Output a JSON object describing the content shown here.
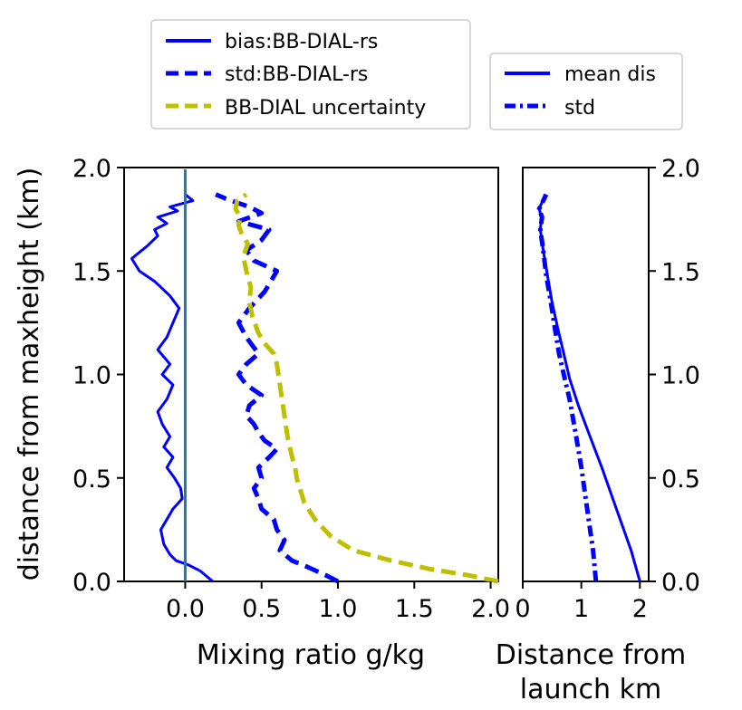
{
  "chart_data": [
    {
      "type": "line",
      "panel": "left",
      "xlabel": "Mixing ratio g/kg",
      "ylabel": "distance from maxheight (km)",
      "xlim": [
        -0.4,
        2.05
      ],
      "ylim": [
        0,
        2.0
      ],
      "xticks": [
        0.0,
        0.5,
        1.0,
        1.5,
        2.0
      ],
      "xtick_labels": [
        "0.0",
        "0.5",
        "1.0",
        "1.5",
        "2.0"
      ],
      "yticks": [
        0.0,
        0.5,
        1.0,
        1.5,
        2.0
      ],
      "ytick_labels": [
        "0.0",
        "0.5",
        "1.0",
        "1.5",
        "2.0"
      ],
      "zero_line": 0.0,
      "legend": {
        "placement": "above",
        "entries": [
          "bias:BB-DIAL-rs",
          "std:BB-DIAL-rs",
          "BB-DIAL uncertainty"
        ]
      },
      "series": [
        {
          "name": "bias:BB-DIAL-rs",
          "style": "solid",
          "color": "#0000ff",
          "x": [
            0.18,
            0.1,
            0.02,
            -0.06,
            -0.1,
            -0.14,
            -0.16,
            -0.12,
            -0.08,
            -0.02,
            -0.03,
            -0.07,
            -0.12,
            -0.08,
            -0.14,
            -0.1,
            -0.15,
            -0.18,
            -0.12,
            -0.08,
            -0.15,
            -0.1,
            -0.18,
            -0.12,
            -0.08,
            -0.04,
            -0.1,
            -0.2,
            -0.3,
            -0.35,
            -0.25,
            -0.18,
            -0.2,
            -0.12,
            -0.18,
            -0.05,
            -0.1,
            0.05,
            0.0
          ],
          "y": [
            0.0,
            0.05,
            0.08,
            0.1,
            0.13,
            0.18,
            0.25,
            0.3,
            0.35,
            0.4,
            0.45,
            0.5,
            0.55,
            0.6,
            0.65,
            0.7,
            0.76,
            0.82,
            0.88,
            0.95,
            1.0,
            1.05,
            1.12,
            1.18,
            1.25,
            1.32,
            1.38,
            1.45,
            1.5,
            1.56,
            1.62,
            1.67,
            1.7,
            1.73,
            1.76,
            1.79,
            1.81,
            1.84,
            1.87
          ]
        },
        {
          "name": "std:BB-DIAL-rs",
          "style": "dashed",
          "color": "#0000ff",
          "x": [
            1.0,
            0.92,
            0.8,
            0.7,
            0.62,
            0.65,
            0.6,
            0.58,
            0.5,
            0.48,
            0.45,
            0.5,
            0.48,
            0.55,
            0.6,
            0.52,
            0.48,
            0.45,
            0.4,
            0.42,
            0.5,
            0.4,
            0.35,
            0.4,
            0.48,
            0.4,
            0.35,
            0.42,
            0.52,
            0.6,
            0.45,
            0.4,
            0.5,
            0.55,
            0.35,
            0.5,
            0.42,
            0.3,
            0.2
          ],
          "y": [
            0.0,
            0.03,
            0.07,
            0.1,
            0.15,
            0.2,
            0.25,
            0.3,
            0.35,
            0.4,
            0.45,
            0.5,
            0.55,
            0.6,
            0.64,
            0.68,
            0.72,
            0.76,
            0.8,
            0.85,
            0.9,
            0.95,
            1.0,
            1.05,
            1.1,
            1.18,
            1.25,
            1.32,
            1.4,
            1.5,
            1.55,
            1.6,
            1.65,
            1.7,
            1.74,
            1.78,
            1.81,
            1.84,
            1.87
          ]
        },
        {
          "name": "BB-DIAL uncertainty",
          "style": "dashed",
          "color": "#bfbf00",
          "x": [
            2.05,
            1.85,
            1.6,
            1.35,
            1.1,
            0.95,
            0.85,
            0.78,
            0.75,
            0.73,
            0.72,
            0.7,
            0.67,
            0.65,
            0.63,
            0.61,
            0.6,
            0.58,
            0.52,
            0.48,
            0.44,
            0.42,
            0.43,
            0.4,
            0.38,
            0.41,
            0.37,
            0.35,
            0.36,
            0.33,
            0.34,
            0.4
          ],
          "y": [
            0.0,
            0.03,
            0.06,
            0.1,
            0.15,
            0.22,
            0.3,
            0.38,
            0.45,
            0.5,
            0.55,
            0.6,
            0.7,
            0.8,
            0.9,
            1.0,
            1.05,
            1.1,
            1.15,
            1.2,
            1.28,
            1.35,
            1.42,
            1.5,
            1.57,
            1.63,
            1.68,
            1.72,
            1.76,
            1.8,
            1.84,
            1.87
          ]
        }
      ]
    },
    {
      "type": "line",
      "panel": "right",
      "xlabel": "Distance from launch km",
      "xlabel_lines": [
        "Distance from",
        "launch km"
      ],
      "xlim": [
        0,
        2.15
      ],
      "ylim": [
        0,
        2.0
      ],
      "xticks": [
        0,
        1,
        2
      ],
      "xtick_labels": [
        "0",
        "1",
        "2"
      ],
      "yticks": [
        0.0,
        0.5,
        1.0,
        1.5,
        2.0
      ],
      "ytick_labels": [
        "0.0",
        "0.5",
        "1.0",
        "1.5",
        "2.0"
      ],
      "legend": {
        "placement": "above",
        "entries": [
          "mean dis",
          "std"
        ]
      },
      "series": [
        {
          "name": "mean dis",
          "style": "solid",
          "color": "#0000ff",
          "x": [
            2.0,
            1.85,
            1.6,
            1.35,
            1.15,
            0.95,
            0.8,
            0.7,
            0.6,
            0.5,
            0.42,
            0.35,
            0.3,
            0.32,
            0.28,
            0.34,
            0.38
          ],
          "y": [
            0.0,
            0.15,
            0.35,
            0.55,
            0.7,
            0.85,
            0.98,
            1.1,
            1.22,
            1.35,
            1.48,
            1.6,
            1.7,
            1.76,
            1.8,
            1.84,
            1.87
          ]
        },
        {
          "name": "std",
          "style": "dashdot",
          "color": "#0000ff",
          "x": [
            1.25,
            1.2,
            1.1,
            1.0,
            0.9,
            0.8,
            0.7,
            0.62,
            0.55,
            0.48,
            0.4,
            0.35,
            0.3,
            0.33,
            0.28,
            0.35,
            0.4
          ],
          "y": [
            0.0,
            0.15,
            0.35,
            0.55,
            0.72,
            0.88,
            1.0,
            1.1,
            1.22,
            1.35,
            1.48,
            1.6,
            1.7,
            1.76,
            1.8,
            1.84,
            1.87
          ]
        }
      ]
    }
  ]
}
